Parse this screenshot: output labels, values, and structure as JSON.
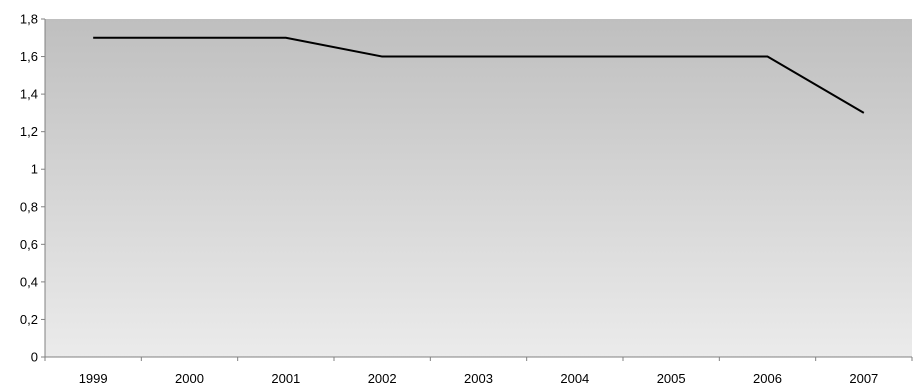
{
  "chart_data": {
    "type": "line",
    "title": "",
    "xlabel": "",
    "ylabel": "",
    "categories": [
      "1999",
      "2000",
      "2001",
      "2002",
      "2003",
      "2004",
      "2005",
      "2006",
      "2007"
    ],
    "series": [
      {
        "values": [
          1.7,
          1.7,
          1.7,
          1.6,
          1.6,
          1.6,
          1.6,
          1.6,
          1.3
        ]
      }
    ],
    "ylim": [
      0,
      1.8
    ],
    "yticks": [
      0,
      0.2,
      0.4,
      0.6,
      0.8,
      1,
      1.2,
      1.4,
      1.6,
      1.8
    ],
    "ytick_labels": [
      "0",
      "0,2",
      "0,4",
      "0,6",
      "0,8",
      "1",
      "1,2",
      "1,4",
      "1,6",
      "1,8"
    ],
    "grid": false,
    "legend": "none",
    "colors": {
      "plot_gradient_top": "#bfbfbf",
      "plot_gradient_bottom": "#ebebeb",
      "line": "#000000",
      "axis": "#808080"
    }
  }
}
